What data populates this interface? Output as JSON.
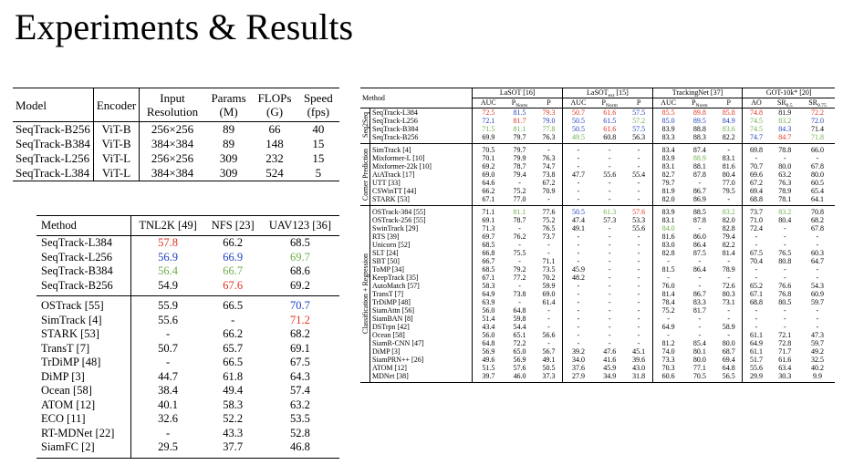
{
  "title": "Experiments & Results",
  "table1": {
    "header": [
      "Model",
      "Encoder",
      "Input Resolution",
      "Params (M)",
      "FLOPs (G)",
      "Speed (fps)"
    ],
    "groups": [
      {
        "rows": [
          [
            "SeqTrack-B256",
            "ViT-B",
            "256×256",
            "89",
            "66",
            "40"
          ],
          [
            "SeqTrack-B384",
            "ViT-B",
            "384×384",
            "89",
            "148",
            "15"
          ],
          [
            "SeqTrack-L256",
            "ViT-L",
            "256×256",
            "309",
            "232",
            "15"
          ],
          [
            "SeqTrack-L384",
            "ViT-L",
            "384×384",
            "309",
            "524",
            "5"
          ]
        ]
      }
    ]
  },
  "table2": {
    "header": [
      "Method",
      "TNL2K [49]",
      "NFS [23]",
      "UAV123 [36]"
    ],
    "groups": [
      {
        "rows": [
          [
            "SeqTrack-L384",
            {
              "text": "57.8",
              "color": "#e3311d"
            },
            "66.2",
            "68.5"
          ],
          [
            "SeqTrack-L256",
            {
              "text": "56.9",
              "color": "#1f3fbf"
            },
            {
              "text": "66.9",
              "color": "#1f3fbf"
            },
            {
              "text": "69.7",
              "color": "#6aaf4a"
            }
          ],
          [
            "SeqTrack-B384",
            {
              "text": "56.4",
              "color": "#6aaf4a"
            },
            {
              "text": "66.7",
              "color": "#6aaf4a"
            },
            "68.6"
          ],
          [
            "SeqTrack-B256",
            "54.9",
            {
              "text": "67.6",
              "color": "#e3311d"
            },
            "69.2"
          ]
        ]
      },
      {
        "rows": [
          [
            "OSTrack [55]",
            "55.9",
            "66.5",
            {
              "text": "70.7",
              "color": "#1f3fbf"
            }
          ],
          [
            "SimTrack [4]",
            "55.6",
            "-",
            {
              "text": "71.2",
              "color": "#e3311d"
            }
          ],
          [
            "STARK [53]",
            "-",
            "66.2",
            "68.2"
          ],
          [
            "TransT [7]",
            "50.7",
            "65.7",
            "69.1"
          ],
          [
            "TrDiMP [48]",
            "-",
            "66.5",
            "67.5"
          ],
          [
            "DiMP [3]",
            "44.7",
            "61.8",
            "64.3"
          ],
          [
            "Ocean [58]",
            "38.4",
            "49.4",
            "57.4"
          ],
          [
            "ATOM [12]",
            "40.1",
            "58.3",
            "63.2"
          ],
          [
            "ECO [11]",
            "32.6",
            "52.2",
            "53.5"
          ],
          [
            "RT-MDNet [22]",
            "-",
            "43.3",
            "52.8"
          ],
          [
            "SiamFC [2]",
            "29.5",
            "37.7",
            "46.8"
          ]
        ]
      }
    ]
  },
  "table3": {
    "method": "Method",
    "datasets": [
      {
        "name": "LaSOT [16]",
        "columns": [
          "AUC",
          {
            "text": "P",
            "sub": "Norm"
          },
          "P"
        ]
      },
      {
        "name": {
          "text": "LaSOT",
          "sub": "ext",
          "after": " [15]"
        },
        "columns": [
          "AUC",
          {
            "text": "P",
            "sub": "Norm"
          },
          "P"
        ]
      },
      {
        "name": "TrackingNet [37]",
        "columns": [
          "AUC",
          {
            "text": "P",
            "sub": "Norm"
          },
          "P"
        ]
      },
      {
        "name": "GOT-10k* [20]",
        "columns": [
          "AO",
          {
            "text": "SR",
            "sub": "0.5"
          },
          {
            "text": "SR",
            "sub": "0.75"
          }
        ]
      }
    ],
    "groups": [
      {
        "label": "Seq2Seq",
        "rows": [
          [
            "SeqTrack-L384",
            {
              "text": "72.5",
              "color": "#e3311d"
            },
            {
              "text": "81.5",
              "color": "#1f3fbf"
            },
            {
              "text": "79.3",
              "color": "#e3311d"
            },
            {
              "text": "50.7",
              "color": "#e3311d"
            },
            {
              "text": "61.6",
              "color": "#e3311d"
            },
            {
              "text": "57.5",
              "color": "#1f3fbf"
            },
            {
              "text": "85.5",
              "color": "#e3311d"
            },
            {
              "text": "89.8",
              "color": "#e3311d"
            },
            {
              "text": "85.8",
              "color": "#e3311d"
            },
            {
              "text": "74.8",
              "color": "#e3311d"
            },
            "81.9",
            {
              "text": "72.2",
              "color": "#e3311d"
            }
          ],
          [
            "SeqTrack-L256",
            {
              "text": "72.1",
              "color": "#1f3fbf"
            },
            {
              "text": "81.7",
              "color": "#e3311d"
            },
            {
              "text": "79.0",
              "color": "#1f3fbf"
            },
            {
              "text": "50.5",
              "color": "#1f3fbf"
            },
            {
              "text": "61.5",
              "color": "#1f3fbf"
            },
            {
              "text": "57.2",
              "color": "#6aaf4a"
            },
            {
              "text": "85.0",
              "color": "#1f3fbf"
            },
            {
              "text": "89.5",
              "color": "#1f3fbf"
            },
            {
              "text": "84.9",
              "color": "#1f3fbf"
            },
            {
              "text": "74.5",
              "color": "#6aaf4a"
            },
            {
              "text": "83.2",
              "color": "#6aaf4a"
            },
            {
              "text": "72.0",
              "color": "#1f3fbf"
            }
          ],
          [
            "SeqTrack-B384",
            {
              "text": "71.5",
              "color": "#6aaf4a"
            },
            {
              "text": "81.1",
              "color": "#6aaf4a"
            },
            {
              "text": "77.8",
              "color": "#6aaf4a"
            },
            {
              "text": "50.5",
              "color": "#1f3fbf"
            },
            {
              "text": "61.6",
              "color": "#e3311d"
            },
            {
              "text": "57.5",
              "color": "#1f3fbf"
            },
            "83.9",
            "88.8",
            {
              "text": "83.6",
              "color": "#6aaf4a"
            },
            {
              "text": "74.5",
              "color": "#6aaf4a"
            },
            {
              "text": "84.3",
              "color": "#1f3fbf"
            },
            "71.4"
          ],
          [
            "SeqTrack-B256",
            "69.9",
            "79.7",
            "76.3",
            {
              "text": "49.5",
              "color": "#6aaf4a"
            },
            "60.8",
            "56.3",
            "83.3",
            "88.3",
            "82.2",
            {
              "text": "74.7",
              "color": "#1f3fbf"
            },
            {
              "text": "84.7",
              "color": "#e3311d"
            },
            {
              "text": "71.8",
              "color": "#6aaf4a"
            }
          ]
        ]
      },
      {
        "label": "Corner Prediction",
        "rows": [
          [
            "SimTrack [4]",
            "70.5",
            "79.7",
            "-",
            "-",
            "-",
            "-",
            "83.4",
            "87.4",
            "-",
            "69.8",
            "78.8",
            "66.0"
          ],
          [
            "Mixformer-L [10]",
            "70.1",
            "79.9",
            "76.3",
            "-",
            "-",
            "-",
            "83.9",
            {
              "text": "88.9",
              "color": "#6aaf4a"
            },
            "83.1",
            "-",
            "-",
            "-"
          ],
          [
            "Mixformer-22k [10]",
            "69.2",
            "78.7",
            "74.7",
            "-",
            "-",
            "-",
            "83.1",
            "88.1",
            "81.6",
            "70.7",
            "80.0",
            "67.8"
          ],
          [
            "AiATrack [17]",
            "69.0",
            "79.4",
            "73.8",
            "47.7",
            "55.6",
            "55.4",
            "82.7",
            "87.8",
            "80.4",
            "69.6",
            "63.2",
            "80.0"
          ],
          [
            "UTT [33]",
            "64.6",
            "-",
            "67.2",
            "-",
            "-",
            "-",
            "79.7",
            "-",
            "77.0",
            "67.2",
            "76.3",
            "60.5"
          ],
          [
            "CSWinTT [44]",
            "66.2",
            "75.2",
            "70.9",
            "-",
            "-",
            "-",
            "81.9",
            "86.7",
            "79.5",
            "69.4",
            "78.9",
            "65.4"
          ],
          [
            "STARK [53]",
            "67.1",
            "77.0",
            "-",
            "-",
            "-",
            "-",
            "82.0",
            "86.9",
            "-",
            "68.8",
            "78.1",
            "64.1"
          ]
        ]
      },
      {
        "label": "Classification + Regression",
        "rows": [
          [
            "OSTrack-384 [55]",
            "71.1",
            {
              "text": "81.1",
              "color": "#6aaf4a"
            },
            "77.6",
            {
              "text": "50.5",
              "color": "#1f3fbf"
            },
            {
              "text": "61.3",
              "color": "#6aaf4a"
            },
            {
              "text": "57.6",
              "color": "#e3311d"
            },
            "83.9",
            "88.5",
            {
              "text": "83.2",
              "color": "#6aaf4a"
            },
            "73.7",
            {
              "text": "83.2",
              "color": "#6aaf4a"
            },
            "70.8"
          ],
          [
            "OSTrack-256 [55]",
            "69.1",
            "78.7",
            "75.2",
            "47.4",
            "57.3",
            "53.3",
            "83.1",
            "87.8",
            "82.0",
            "71.0",
            "80.4",
            "68.2"
          ],
          [
            "SwinTrack [29]",
            "71.3",
            "-",
            "76.5",
            "49.1",
            "-",
            "55.6",
            {
              "text": "84.0",
              "color": "#6aaf4a"
            },
            "-",
            "82.8",
            "72.4",
            "-",
            "67.8"
          ],
          [
            "RTS [39]",
            "69.7",
            "76.2",
            "73.7",
            "-",
            "-",
            "-",
            "81.6",
            "86.0",
            "79.4",
            "-",
            "-",
            "-"
          ],
          [
            "Unicorn [52]",
            "68.5",
            "-",
            "-",
            "-",
            "-",
            "-",
            "83.0",
            "86.4",
            "82.2",
            "-",
            "-",
            "-"
          ],
          [
            "SLT [24]",
            "66.8",
            "75.5",
            "-",
            "-",
            "-",
            "-",
            "82.8",
            "87.5",
            "81.4",
            "67.5",
            "76.5",
            "60.3"
          ],
          [
            "SBT [50]",
            "66.7",
            "-",
            "71.1",
            "-",
            "-",
            "-",
            "-",
            "-",
            "-",
            "70.4",
            "80.8",
            "64.7"
          ],
          [
            "ToMP [34]",
            "68.5",
            "79.2",
            "73.5",
            "45.9",
            "-",
            "-",
            "81.5",
            "86.4",
            "78.9",
            "-",
            "-",
            "-"
          ],
          [
            "KeepTrack [35]",
            "67.1",
            "77.2",
            "70.2",
            "48.2",
            "-",
            "-",
            "-",
            "-",
            "-",
            "-",
            "-",
            "-"
          ],
          [
            "AutoMatch [57]",
            "58.3",
            "-",
            "59.9",
            "-",
            "-",
            "-",
            "76.0",
            "-",
            "72.6",
            "65.2",
            "76.6",
            "54.3"
          ],
          [
            "TransT [7]",
            "64.9",
            "73.8",
            "69.0",
            "-",
            "-",
            "-",
            "81.4",
            "86.7",
            "80.3",
            "67.1",
            "76.8",
            "60.9"
          ],
          [
            "TrDiMP [48]",
            "63.9",
            "-",
            "61.4",
            "-",
            "-",
            "-",
            "78.4",
            "83.3",
            "73.1",
            "68.8",
            "80.5",
            "59.7"
          ],
          [
            "SiamAttn [56]",
            "56.0",
            "64.8",
            "-",
            "-",
            "-",
            "-",
            "75.2",
            "81.7",
            "-",
            "-",
            "-",
            "-"
          ],
          [
            "SiamBAN [8]",
            "51.4",
            "59.8",
            "-",
            "-",
            "-",
            "-",
            "-",
            "-",
            "-",
            "-",
            "-",
            "-"
          ],
          [
            "DSTrpn [42]",
            "43.4",
            "54.4",
            "-",
            "-",
            "-",
            "-",
            "64.9",
            "-",
            "58.9",
            "-",
            "-",
            "-"
          ],
          [
            "Ocean [58]",
            "56.0",
            "65.1",
            "56.6",
            "-",
            "-",
            "-",
            "-",
            "-",
            "-",
            "61.1",
            "72.1",
            "47.3"
          ],
          [
            "SiamR-CNN [47]",
            "64.8",
            "72.2",
            "-",
            "-",
            "-",
            "-",
            "81.2",
            "85.4",
            "80.0",
            "64.9",
            "72.8",
            "59.7"
          ],
          [
            "DiMP [3]",
            "56.9",
            "65.0",
            "56.7",
            "39.2",
            "47.6",
            "45.1",
            "74.0",
            "80.1",
            "68.7",
            "61.1",
            "71.7",
            "49.2"
          ],
          [
            "SiamPRN++ [26]",
            "49.6",
            "56.9",
            "49.1",
            "34.0",
            "41.6",
            "39.6",
            "73.3",
            "80.0",
            "69.4",
            "51.7",
            "61.6",
            "32.5"
          ],
          [
            "ATOM [12]",
            "51.5",
            "57.6",
            "50.5",
            "37.6",
            "45.9",
            "43.0",
            "70.3",
            "77.1",
            "64.8",
            "55.6",
            "63.4",
            "40.2"
          ],
          [
            "MDNet [38]",
            "39.7",
            "46.0",
            "37.3",
            "27.9",
            "34.9",
            "31.8",
            "60.6",
            "70.5",
            "56.5",
            "29.9",
            "30.3",
            "9.9"
          ]
        ]
      }
    ]
  }
}
